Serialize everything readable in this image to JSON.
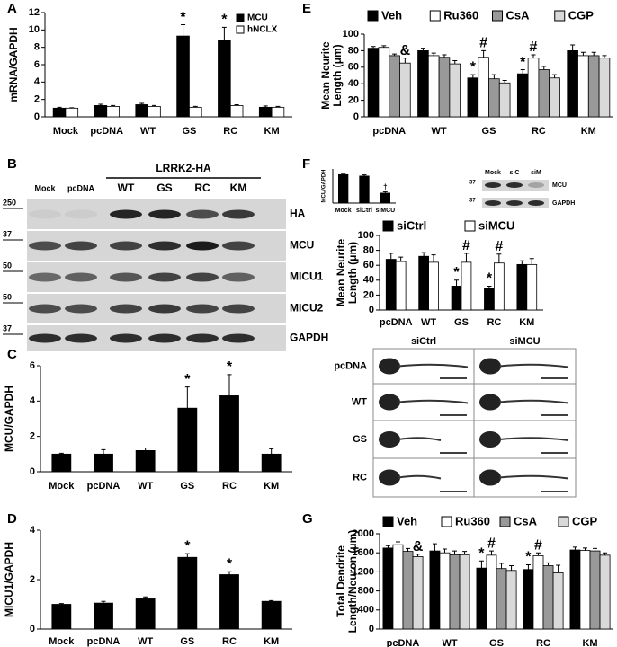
{
  "chart_data": [
    {
      "type": "bar",
      "panel": "A",
      "ylabel": [
        "mRNA/GAPDH"
      ],
      "categories": [
        "Mock",
        "pcDNA",
        "WT",
        "GS",
        "RC",
        "KM"
      ],
      "series": [
        {
          "name": "MCU",
          "color": "#000000",
          "values": [
            1,
            1.3,
            1.4,
            9.3,
            8.8,
            1.1
          ],
          "errors": [
            0.1,
            0.15,
            0.15,
            1.3,
            1.5,
            0.15
          ],
          "annotations": [
            null,
            null,
            null,
            "*",
            "*",
            null
          ]
        },
        {
          "name": "hNCLX",
          "color": "#ffffff",
          "values": [
            1,
            1.2,
            1.2,
            1.1,
            1.3,
            1.1
          ],
          "errors": [
            0.05,
            0.1,
            0.1,
            0.1,
            0.1,
            0.1
          ],
          "annotations": [
            null,
            null,
            null,
            null,
            null,
            null
          ]
        }
      ],
      "ylim": [
        0,
        12
      ],
      "yticks": [
        0,
        2,
        4,
        6,
        8,
        10,
        12
      ],
      "legend": "upper right"
    },
    {
      "type": "bar",
      "panel": "C",
      "ylabel": [
        "MCU/GAPDH"
      ],
      "categories": [
        "Mock",
        "pcDNA",
        "WT",
        "GS",
        "RC",
        "KM"
      ],
      "values": [
        1,
        1,
        1.2,
        3.6,
        4.3,
        1.0
      ],
      "errors": [
        0.05,
        0.25,
        0.15,
        1.2,
        1.2,
        0.3
      ],
      "annotations": [
        null,
        null,
        null,
        "*",
        "*",
        null
      ],
      "color": "#000000",
      "ylim": [
        0,
        6
      ],
      "yticks": [
        0,
        2,
        4,
        6
      ]
    },
    {
      "type": "bar",
      "panel": "D",
      "ylabel": [
        "MICU1/GAPDH"
      ],
      "categories": [
        "Mock",
        "pcDNA",
        "WT",
        "GS",
        "RC",
        "KM"
      ],
      "values": [
        1,
        1.05,
        1.22,
        2.9,
        2.2,
        1.12
      ],
      "errors": [
        0.03,
        0.07,
        0.08,
        0.15,
        0.12,
        0.03
      ],
      "annotations": [
        null,
        null,
        null,
        "*",
        "*",
        null
      ],
      "color": "#000000",
      "ylim": [
        0,
        4
      ],
      "yticks": [
        0,
        2,
        4
      ]
    },
    {
      "type": "bar",
      "panel": "E",
      "ylabel": [
        "Mean Neurite",
        "Length (μm)"
      ],
      "categories": [
        "pcDNA",
        "WT",
        "GS",
        "RC",
        "KM"
      ],
      "series": [
        {
          "name": "Veh",
          "color": "#000000",
          "values": [
            83,
            80,
            47,
            52,
            80
          ],
          "errors": [
            2,
            3,
            4,
            5,
            7
          ],
          "annotations": [
            null,
            null,
            "*",
            "*",
            null
          ]
        },
        {
          "name": "Ru360",
          "color": "#ffffff",
          "values": [
            84,
            74,
            72,
            71,
            74
          ],
          "errors": [
            2,
            3,
            8,
            4,
            4
          ],
          "annotations": [
            null,
            null,
            "#",
            "#",
            null
          ]
        },
        {
          "name": "CsA",
          "color": "#999999",
          "values": [
            74,
            72,
            46,
            57,
            74
          ],
          "errors": [
            2,
            3,
            5,
            4,
            4
          ],
          "annotations": [
            null,
            null,
            null,
            null,
            null
          ]
        },
        {
          "name": "CGP",
          "color": "#d9d9d9",
          "values": [
            65,
            64,
            41,
            47,
            71
          ],
          "errors": [
            6,
            4,
            3,
            4,
            3
          ],
          "annotations": [
            "&",
            null,
            null,
            null,
            null
          ]
        }
      ],
      "ylim": [
        0,
        100
      ],
      "yticks": [
        0,
        20,
        40,
        60,
        80,
        100
      ],
      "legend": "top"
    },
    {
      "type": "bar",
      "panel": "F",
      "ylabel": [
        "MCU/GAPDH"
      ],
      "categories": [
        "Mock",
        "siCtrl",
        "siMCU"
      ],
      "values": [
        1,
        0.95,
        0.35
      ],
      "errors": [
        0.02,
        0.04,
        0.05
      ],
      "annotations": [
        null,
        null,
        "†"
      ],
      "color": "#000000",
      "ylim": [
        0,
        1.2
      ]
    },
    {
      "type": "bar",
      "ylabel": [
        "Mean Neurite",
        "Length (μm)"
      ],
      "categories": [
        "pcDNA",
        "WT",
        "GS",
        "RC",
        "KM"
      ],
      "series": [
        {
          "name": "siCtrl",
          "color": "#000000",
          "values": [
            68,
            72,
            32,
            29,
            61
          ],
          "errors": [
            8,
            5,
            8,
            3,
            5
          ],
          "annotations": [
            null,
            null,
            "*",
            "*",
            null
          ]
        },
        {
          "name": "siMCU",
          "color": "#ffffff",
          "values": [
            65,
            64,
            64,
            63,
            61
          ],
          "errors": [
            6,
            10,
            12,
            12,
            8
          ],
          "annotations": [
            null,
            null,
            "#",
            "#",
            null
          ]
        }
      ],
      "ylim": [
        0,
        100
      ],
      "yticks": [
        0,
        20,
        40,
        60,
        80,
        100
      ],
      "legend": "top"
    },
    {
      "type": "bar",
      "panel": "G",
      "ylabel": [
        "Total Dendrite",
        "Length/Neuron (μm)"
      ],
      "categories": [
        "pcDNA",
        "WT",
        "GS",
        "RC",
        "KM"
      ],
      "series": [
        {
          "name": "Veh",
          "color": "#000000",
          "values": [
            1700,
            1640,
            1280,
            1250,
            1660
          ],
          "errors": [
            50,
            150,
            150,
            100,
            60
          ],
          "annotations": [
            null,
            null,
            "*",
            "*",
            null
          ]
        },
        {
          "name": "Ru360",
          "color": "#ffffff",
          "values": [
            1770,
            1600,
            1550,
            1540,
            1650
          ],
          "errors": [
            60,
            80,
            90,
            60,
            50
          ],
          "annotations": [
            null,
            null,
            "#",
            "#",
            null
          ]
        },
        {
          "name": "CsA",
          "color": "#999999",
          "values": [
            1630,
            1560,
            1270,
            1330,
            1640
          ],
          "errors": [
            60,
            80,
            110,
            60,
            50
          ],
          "annotations": [
            null,
            null,
            null,
            null,
            null
          ]
        },
        {
          "name": "CGP",
          "color": "#d9d9d9",
          "values": [
            1520,
            1560,
            1230,
            1180,
            1550
          ],
          "errors": [
            50,
            70,
            100,
            160,
            50
          ],
          "annotations": [
            "&",
            null,
            null,
            null,
            null
          ]
        }
      ],
      "ylim": [
        0,
        2000
      ],
      "yticks": [
        0,
        400,
        800,
        1200,
        1600,
        2000
      ],
      "legend": "top"
    }
  ],
  "blot_B": {
    "panel": "B",
    "lanes": [
      "Mock",
      "pcDNA",
      "WT",
      "GS",
      "RC",
      "KM"
    ],
    "group_label": "LRRK2-HA",
    "rows": [
      {
        "label": "HA",
        "marker": "250"
      },
      {
        "label": "MCU",
        "marker": "37"
      },
      {
        "label": "MICU1",
        "marker": "50"
      },
      {
        "label": "MICU2",
        "marker": "50"
      },
      {
        "label": "GAPDH",
        "marker": "37"
      }
    ]
  },
  "blot_F": {
    "lanes": [
      "Mock",
      "siC",
      "siM"
    ],
    "rows": [
      {
        "label": "MCU",
        "marker": "37"
      },
      {
        "label": "GAPDH",
        "marker": "37"
      }
    ]
  },
  "images_F": {
    "columns": [
      "siCtrl",
      "siMCU"
    ],
    "rows": [
      "pcDNA",
      "WT",
      "GS",
      "RC"
    ]
  }
}
